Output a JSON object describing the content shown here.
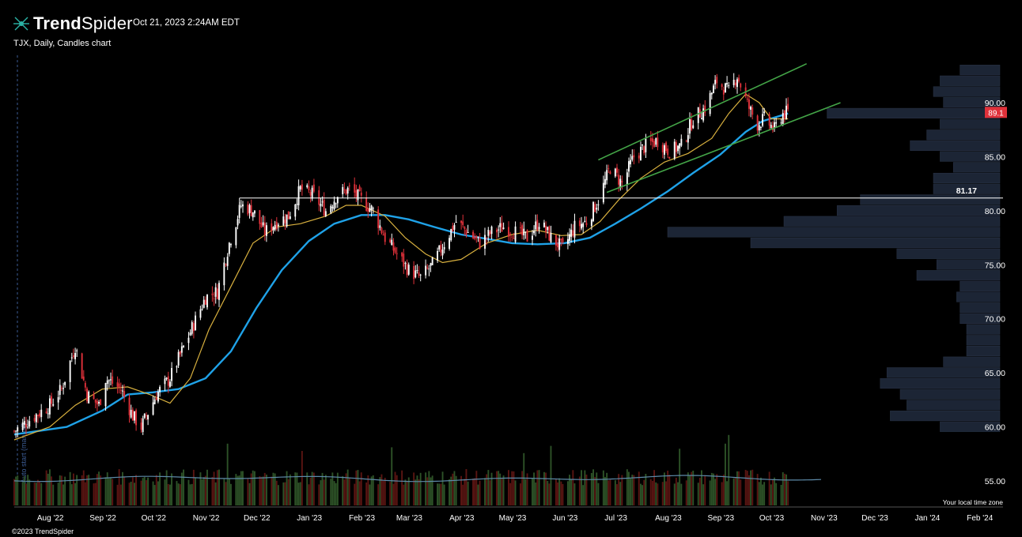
{
  "header": {
    "brand_bold": "Trend",
    "brand_rest": "Spider",
    "timestamp": "Oct 21, 2023 2:24AM EDT",
    "symbol_line": "TJX, Daily, Candles chart"
  },
  "footer": {
    "copyright": "©2023 TrendSpider",
    "timezone_note": "Your local time zone",
    "vertical_note": "Auto start (manual)"
  },
  "chart_data": {
    "type": "candlestick",
    "title": "TJX, Daily, Candles chart",
    "y_axis": {
      "range": [
        53.5,
        93.8
      ],
      "ticks": [
        "55.00",
        "60.00",
        "65.00",
        "70.00",
        "75.00",
        "80.00",
        "85.00",
        "90.00"
      ],
      "tick_values": [
        55,
        60,
        65,
        70,
        75,
        80,
        85,
        90
      ]
    },
    "x_axis": {
      "range": [
        "2022-07-20",
        "2024-02-24"
      ],
      "labels": [
        "Aug '22",
        "Sep '22",
        "Oct '22",
        "Nov '22",
        "Dec '22",
        "Jan '23",
        "Feb '23",
        "Mar '23",
        "Apr '23",
        "May '23",
        "Jun '23",
        "Jul '23",
        "Aug '23",
        "Sep '23",
        "Oct '23",
        "Nov '23",
        "Dec '23",
        "Jan '24",
        "Feb '24"
      ],
      "label_dates": [
        "2022-08-01",
        "2022-09-01",
        "2022-10-01",
        "2022-11-01",
        "2022-12-01",
        "2023-01-01",
        "2023-02-01",
        "2023-03-01",
        "2023-04-01",
        "2023-05-01",
        "2023-06-01",
        "2023-07-01",
        "2023-08-01",
        "2023-09-01",
        "2023-10-01",
        "2023-11-01",
        "2023-12-01",
        "2024-01-01",
        "2024-02-01"
      ]
    },
    "price_path": [
      [
        "2022-07-20",
        59.6
      ],
      [
        "2022-08-01",
        61.0
      ],
      [
        "2022-08-10",
        62.0
      ],
      [
        "2022-08-17",
        63.5
      ],
      [
        "2022-08-25",
        67.5
      ],
      [
        "2022-09-01",
        63.0
      ],
      [
        "2022-09-08",
        62.0
      ],
      [
        "2022-09-12",
        64.5
      ],
      [
        "2022-09-21",
        63.5
      ],
      [
        "2022-09-28",
        61.0
      ],
      [
        "2022-10-03",
        60.0
      ],
      [
        "2022-10-12",
        63.0
      ],
      [
        "2022-10-20",
        64.5
      ],
      [
        "2022-10-27",
        67.0
      ],
      [
        "2022-11-03",
        69.5
      ],
      [
        "2022-11-10",
        72.0
      ],
      [
        "2022-11-17",
        72.5
      ],
      [
        "2022-11-24",
        77.0
      ],
      [
        "2022-12-01",
        80.5
      ],
      [
        "2022-12-08",
        80.0
      ],
      [
        "2022-12-15",
        78.0
      ],
      [
        "2022-12-22",
        79.0
      ],
      [
        "2022-12-29",
        79.5
      ],
      [
        "2023-01-05",
        82.0
      ],
      [
        "2023-01-12",
        81.5
      ],
      [
        "2023-01-20",
        80.0
      ],
      [
        "2023-01-27",
        81.5
      ],
      [
        "2023-02-03",
        82.0
      ],
      [
        "2023-02-10",
        81.0
      ],
      [
        "2023-02-17",
        80.0
      ],
      [
        "2023-02-24",
        77.5
      ],
      [
        "2023-03-03",
        76.0
      ],
      [
        "2023-03-10",
        74.5
      ],
      [
        "2023-03-17",
        73.8
      ],
      [
        "2023-03-24",
        75.0
      ],
      [
        "2023-03-31",
        77.0
      ],
      [
        "2023-04-07",
        79.0
      ],
      [
        "2023-04-14",
        78.0
      ],
      [
        "2023-04-21",
        77.0
      ],
      [
        "2023-04-28",
        78.0
      ],
      [
        "2023-05-05",
        78.5
      ],
      [
        "2023-05-12",
        78.0
      ],
      [
        "2023-05-19",
        77.5
      ],
      [
        "2023-05-26",
        79.0
      ],
      [
        "2023-06-02",
        77.5
      ],
      [
        "2023-06-09",
        76.5
      ],
      [
        "2023-06-16",
        78.5
      ],
      [
        "2023-06-23",
        79.0
      ],
      [
        "2023-06-30",
        81.0
      ],
      [
        "2023-07-07",
        84.0
      ],
      [
        "2023-07-14",
        82.5
      ],
      [
        "2023-07-21",
        85.0
      ],
      [
        "2023-07-28",
        86.0
      ],
      [
        "2023-08-04",
        86.5
      ],
      [
        "2023-08-11",
        85.5
      ],
      [
        "2023-08-18",
        86.0
      ],
      [
        "2023-08-25",
        88.5
      ],
      [
        "2023-09-01",
        89.5
      ],
      [
        "2023-09-08",
        92.0
      ],
      [
        "2023-09-15",
        91.0
      ],
      [
        "2023-09-20",
        92.5
      ],
      [
        "2023-09-27",
        89.5
      ],
      [
        "2023-10-02",
        88.0
      ],
      [
        "2023-10-06",
        88.5
      ],
      [
        "2023-10-12",
        87.5
      ],
      [
        "2023-10-17",
        89.0
      ],
      [
        "2023-10-20",
        89.1
      ]
    ],
    "sma_fast_path": [
      [
        "2022-07-20",
        58.8
      ],
      [
        "2022-08-10",
        60.0
      ],
      [
        "2022-08-25",
        62.0
      ],
      [
        "2022-09-10",
        63.5
      ],
      [
        "2022-09-25",
        63.7
      ],
      [
        "2022-10-08",
        63.0
      ],
      [
        "2022-10-20",
        62.2
      ],
      [
        "2022-11-01",
        64.5
      ],
      [
        "2022-11-12",
        69.0
      ],
      [
        "2022-11-25",
        73.0
      ],
      [
        "2022-12-08",
        77.0
      ],
      [
        "2022-12-22",
        78.5
      ],
      [
        "2023-01-05",
        78.8
      ],
      [
        "2023-01-20",
        79.5
      ],
      [
        "2023-02-01",
        80.5
      ],
      [
        "2023-02-10",
        80.5
      ],
      [
        "2023-02-24",
        79.5
      ],
      [
        "2023-03-08",
        77.5
      ],
      [
        "2023-03-20",
        76.0
      ],
      [
        "2023-03-30",
        75.2
      ],
      [
        "2023-04-10",
        75.5
      ],
      [
        "2023-04-25",
        77.0
      ],
      [
        "2023-05-10",
        77.8
      ],
      [
        "2023-05-25",
        78.2
      ],
      [
        "2023-06-08",
        77.7
      ],
      [
        "2023-06-20",
        77.8
      ],
      [
        "2023-07-01",
        79.0
      ],
      [
        "2023-07-12",
        81.0
      ],
      [
        "2023-07-25",
        83.0
      ],
      [
        "2023-08-08",
        84.5
      ],
      [
        "2023-08-22",
        85.3
      ],
      [
        "2023-09-05",
        86.7
      ],
      [
        "2023-09-15",
        89.0
      ],
      [
        "2023-09-25",
        90.8
      ],
      [
        "2023-10-03",
        90.0
      ],
      [
        "2023-10-10",
        88.5
      ],
      [
        "2023-10-20",
        88.5
      ]
    ],
    "sma_slow_path": [
      [
        "2022-07-20",
        59.3
      ],
      [
        "2022-08-20",
        60.0
      ],
      [
        "2022-09-10",
        61.5
      ],
      [
        "2022-09-25",
        63.0
      ],
      [
        "2022-10-10",
        63.2
      ],
      [
        "2022-10-25",
        63.5
      ],
      [
        "2022-11-10",
        64.5
      ],
      [
        "2022-11-25",
        67.0
      ],
      [
        "2022-12-10",
        71.0
      ],
      [
        "2022-12-25",
        74.5
      ],
      [
        "2023-01-10",
        77.2
      ],
      [
        "2023-01-25",
        78.8
      ],
      [
        "2023-02-10",
        79.6
      ],
      [
        "2023-02-24",
        79.6
      ],
      [
        "2023-03-10",
        79.2
      ],
      [
        "2023-03-25",
        78.5
      ],
      [
        "2023-04-10",
        77.8
      ],
      [
        "2023-04-25",
        77.4
      ],
      [
        "2023-05-10",
        77.0
      ],
      [
        "2023-05-25",
        76.9
      ],
      [
        "2023-06-10",
        77.0
      ],
      [
        "2023-06-25",
        77.5
      ],
      [
        "2023-07-10",
        78.8
      ],
      [
        "2023-07-25",
        80.2
      ],
      [
        "2023-08-10",
        81.8
      ],
      [
        "2023-08-25",
        83.5
      ],
      [
        "2023-09-10",
        85.2
      ],
      [
        "2023-09-25",
        87.3
      ],
      [
        "2023-10-05",
        88.3
      ],
      [
        "2023-10-20",
        89.0
      ]
    ],
    "horizontal_level": {
      "value": 81.17,
      "label": "81.17",
      "from": "2022-11-30"
    },
    "trendlines": [
      {
        "name": "channel-upper",
        "from": [
          "2023-06-30",
          84.7
        ],
        "to": [
          "2023-10-31",
          93.6
        ]
      },
      {
        "name": "channel-lower",
        "from": [
          "2023-07-05",
          81.7
        ],
        "to": [
          "2023-11-20",
          90.0
        ]
      }
    ],
    "last_price": {
      "value": 89.1,
      "label": "89.1"
    },
    "volume_profile": [
      {
        "price": 93.0,
        "size": 0.12
      },
      {
        "price": 92.0,
        "size": 0.18
      },
      {
        "price": 91.0,
        "size": 0.2
      },
      {
        "price": 90.0,
        "size": 0.17
      },
      {
        "price": 89.0,
        "size": 0.52
      },
      {
        "price": 88.0,
        "size": 0.18
      },
      {
        "price": 87.0,
        "size": 0.22
      },
      {
        "price": 86.0,
        "size": 0.27
      },
      {
        "price": 85.0,
        "size": 0.18
      },
      {
        "price": 84.0,
        "size": 0.14
      },
      {
        "price": 83.0,
        "size": 0.2
      },
      {
        "price": 82.0,
        "size": 0.2
      },
      {
        "price": 81.0,
        "size": 0.42
      },
      {
        "price": 80.0,
        "size": 0.49
      },
      {
        "price": 79.0,
        "size": 0.65
      },
      {
        "price": 78.0,
        "size": 1.0
      },
      {
        "price": 77.0,
        "size": 0.75
      },
      {
        "price": 76.0,
        "size": 0.31
      },
      {
        "price": 75.0,
        "size": 0.19
      },
      {
        "price": 74.0,
        "size": 0.25
      },
      {
        "price": 73.0,
        "size": 0.12
      },
      {
        "price": 72.0,
        "size": 0.13
      },
      {
        "price": 71.0,
        "size": 0.12
      },
      {
        "price": 70.0,
        "size": 0.12
      },
      {
        "price": 69.0,
        "size": 0.1
      },
      {
        "price": 68.0,
        "size": 0.1
      },
      {
        "price": 67.0,
        "size": 0.1
      },
      {
        "price": 66.0,
        "size": 0.17
      },
      {
        "price": 65.0,
        "size": 0.34
      },
      {
        "price": 64.0,
        "size": 0.36
      },
      {
        "price": 63.0,
        "size": 0.3
      },
      {
        "price": 62.0,
        "size": 0.28
      },
      {
        "price": 61.0,
        "size": 0.33
      },
      {
        "price": 60.0,
        "size": 0.18
      }
    ],
    "volume_spikes": [
      {
        "date": "2022-11-23",
        "level": 0.85
      },
      {
        "date": "2023-01-06",
        "level": 0.75
      },
      {
        "date": "2023-02-28",
        "level": 0.8
      },
      {
        "date": "2023-05-17",
        "level": 0.72
      },
      {
        "date": "2023-06-02",
        "level": 0.82
      },
      {
        "date": "2023-08-17",
        "level": 0.78
      },
      {
        "date": "2023-09-13",
        "level": 0.85
      },
      {
        "date": "2023-09-15",
        "level": 0.97
      }
    ],
    "colors": {
      "background": "#000000",
      "up": "#ffffff",
      "down": "#e0313a",
      "sma_fast": "#d9b13f",
      "sma_slow": "#1fa2e8",
      "trendline": "#43a447",
      "level_line": "#ffffff",
      "volume_profile": "#1c2535",
      "last_price_badge": "#e0313a",
      "volume_up": "#2d5227",
      "volume_down": "#5a1512",
      "volume_avg": "#5d8aa8"
    }
  }
}
